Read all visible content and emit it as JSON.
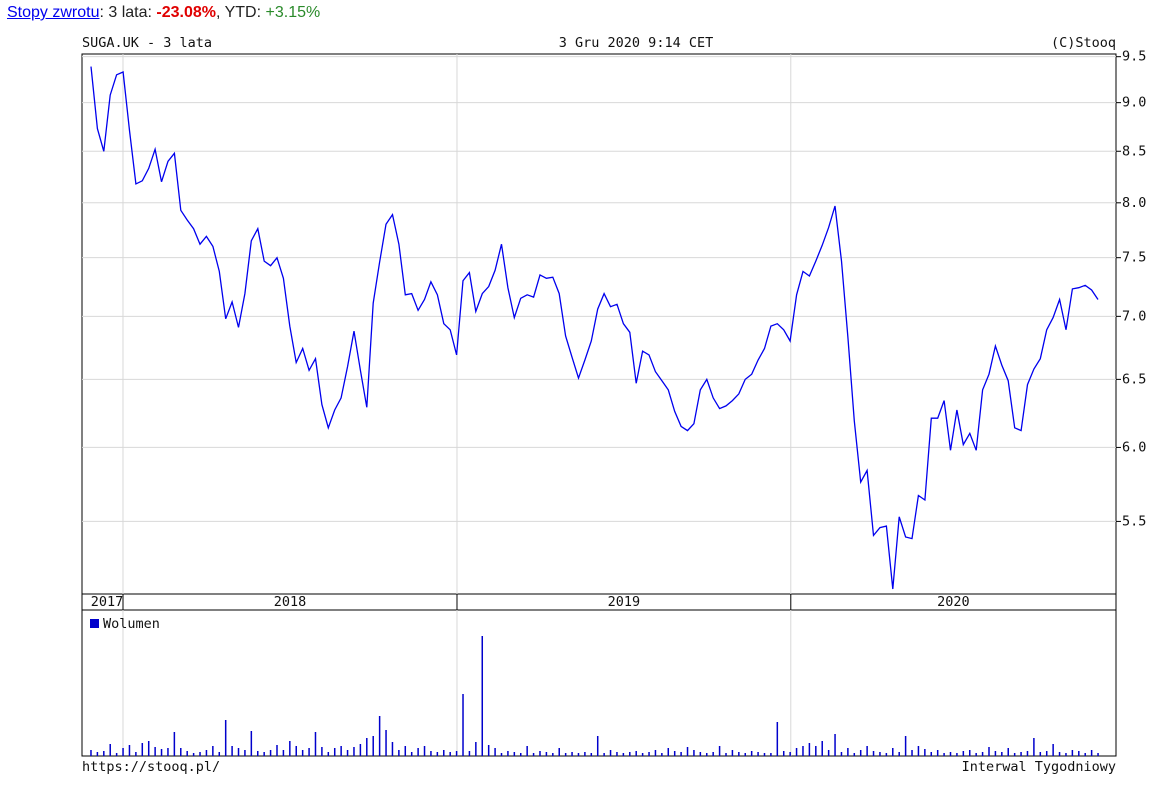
{
  "header": {
    "link": "Stopy zwrotu",
    "period_label": ": 3 lata: ",
    "period_return": "-23.08%",
    "ytd_label": ", YTD: ",
    "ytd_return": "+3.15%"
  },
  "chart_data": {
    "type": "line",
    "title": "SUGA.UK - 3 lata",
    "date": "3 Gru 2020 9:14 CET",
    "credit": "(C)Stooq",
    "footer_left": "https://stooq.pl/",
    "footer_right": "Interwal Tygodniowy",
    "log_scale": true,
    "grid": true,
    "ylim": [
      5.05,
      9.53
    ],
    "yticks": [
      {
        "value": 5.5,
        "label": "5.5"
      },
      {
        "value": 6,
        "label": "6.0"
      },
      6.5,
      {
        "value": 7,
        "label": "7.0"
      },
      7.5,
      {
        "value": 8,
        "label": "8.0"
      },
      8.5,
      {
        "value": 9,
        "label": "9.0"
      },
      9.5
    ],
    "xlim": [
      -1.4,
      159.8
    ],
    "year_labels": [
      "2017",
      "2018",
      "2019",
      "2020"
    ],
    "year_boundaries": [
      4.99,
      57.06,
      109.1
    ],
    "series": [
      {
        "color": "#0000ee",
        "values": [
          9.39,
          8.73,
          8.5,
          9.08,
          9.3,
          9.33,
          8.71,
          8.18,
          8.21,
          8.33,
          8.52,
          8.2,
          8.4,
          8.48,
          7.93,
          7.84,
          7.76,
          7.62,
          7.69,
          7.6,
          7.38,
          6.98,
          7.12,
          6.91,
          7.19,
          7.65,
          7.76,
          7.47,
          7.43,
          7.5,
          7.32,
          6.92,
          6.63,
          6.74,
          6.57,
          6.66,
          6.31,
          6.14,
          6.27,
          6.36,
          6.6,
          6.88,
          6.57,
          6.29,
          7.11,
          7.46,
          7.8,
          7.89,
          7.62,
          7.18,
          7.19,
          7.05,
          7.14,
          7.29,
          7.18,
          6.94,
          6.89,
          6.69,
          7.3,
          7.37,
          7.04,
          7.19,
          7.25,
          7.39,
          7.62,
          7.24,
          6.99,
          7.15,
          7.18,
          7.16,
          7.35,
          7.32,
          7.33,
          7.19,
          6.84,
          6.67,
          6.51,
          6.65,
          6.8,
          7.06,
          7.19,
          7.08,
          7.1,
          6.94,
          6.87,
          6.47,
          6.72,
          6.69,
          6.56,
          6.49,
          6.42,
          6.26,
          6.15,
          6.12,
          6.17,
          6.42,
          6.5,
          6.36,
          6.28,
          6.3,
          6.34,
          6.39,
          6.5,
          6.54,
          6.65,
          6.74,
          6.92,
          6.94,
          6.89,
          6.8,
          7.18,
          7.38,
          7.34,
          7.47,
          7.61,
          7.77,
          7.97,
          7.47,
          6.83,
          6.19,
          5.76,
          5.84,
          5.41,
          5.46,
          5.47,
          5.08,
          5.53,
          5.4,
          5.39,
          5.67,
          5.64,
          6.21,
          6.21,
          6.34,
          5.98,
          6.27,
          6.02,
          6.1,
          5.98,
          6.42,
          6.54,
          6.76,
          6.61,
          6.49,
          6.14,
          6.12,
          6.46,
          6.58,
          6.66,
          6.89,
          6.99,
          7.14,
          6.89,
          7.23,
          7.24,
          7.26,
          7.22,
          7.14
        ]
      }
    ],
    "volume": {
      "name": "Wolumen",
      "color": "#0000cc",
      "ylim": [
        0,
        120
      ],
      "values": [
        6,
        4,
        5,
        12,
        3,
        8,
        11,
        4,
        13,
        15,
        9,
        7,
        8,
        24,
        8,
        5,
        3,
        4,
        6,
        10,
        4,
        36,
        10,
        8,
        6,
        25,
        5,
        4,
        6,
        11,
        6,
        15,
        10,
        6,
        8,
        24,
        9,
        4,
        8,
        10,
        6,
        9,
        12,
        18,
        20,
        40,
        26,
        14,
        6,
        10,
        4,
        8,
        10,
        5,
        4,
        6,
        4,
        5,
        62,
        5,
        14,
        120,
        11,
        8,
        3,
        5,
        4,
        3,
        10,
        3,
        5,
        4,
        3,
        8,
        3,
        4,
        3,
        4,
        3,
        20,
        3,
        6,
        4,
        3,
        4,
        5,
        3,
        4,
        6,
        3,
        8,
        5,
        4,
        9,
        6,
        4,
        3,
        4,
        10,
        3,
        6,
        4,
        3,
        5,
        4,
        3,
        3,
        34,
        5,
        4,
        8,
        10,
        13,
        10,
        15,
        6,
        22,
        4,
        8,
        3,
        6,
        10,
        5,
        4,
        3,
        8,
        4,
        20,
        6,
        10,
        7,
        4,
        6,
        3,
        4,
        3,
        5,
        6,
        3,
        4,
        9,
        5,
        4,
        8,
        3,
        4,
        5,
        18,
        4,
        5,
        12,
        4,
        3,
        6,
        5,
        3,
        6,
        3
      ]
    }
  }
}
